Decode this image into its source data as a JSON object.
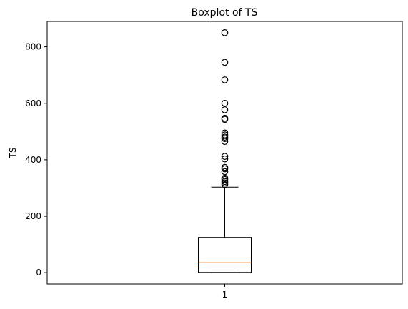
{
  "chart_data": {
    "type": "boxplot",
    "title": "Boxplot of TS",
    "xlabel": "",
    "ylabel": "TS",
    "ylim": [
      -40,
      890
    ],
    "x_ticks": [
      "1"
    ],
    "y_ticks": [
      0,
      200,
      400,
      600,
      800
    ],
    "grid": false,
    "series": [
      {
        "category": "1",
        "whisker_low": 0,
        "q1": 1,
        "median": 35,
        "q3": 125,
        "whisker_high": 303,
        "outliers": [
          312,
          318,
          323,
          330,
          335,
          358,
          368,
          373,
          403,
          412,
          465,
          475,
          480,
          488,
          495,
          543,
          547,
          577,
          600,
          683,
          745,
          850
        ]
      }
    ],
    "colors": {
      "box": "#000000",
      "median": "#ff7f0e",
      "outlier_edge": "#000000",
      "background": "#ffffff"
    }
  }
}
